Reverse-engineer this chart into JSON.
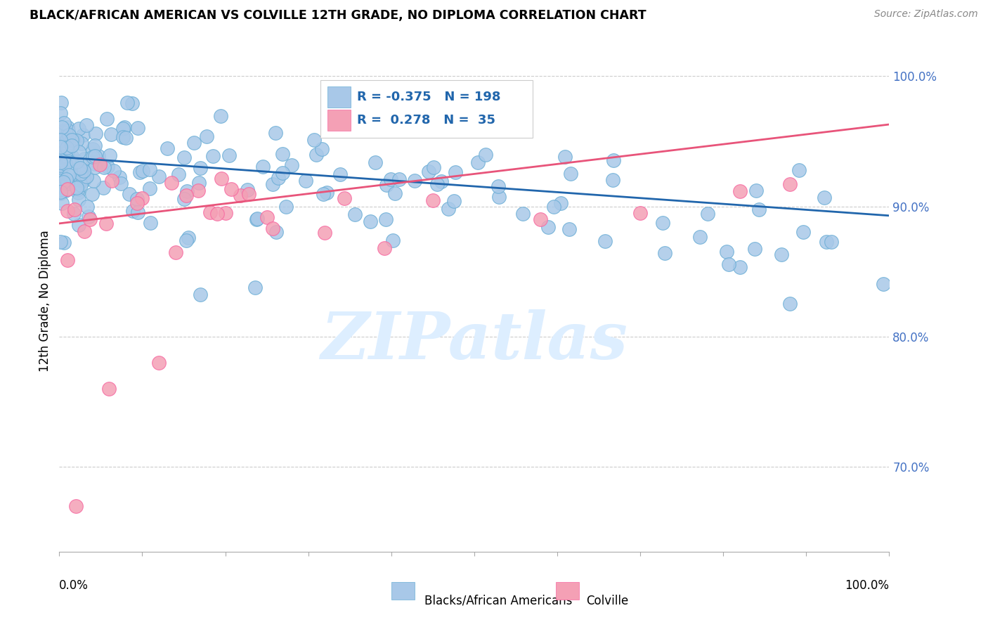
{
  "title": "BLACK/AFRICAN AMERICAN VS COLVILLE 12TH GRADE, NO DIPLOMA CORRELATION CHART",
  "source": "Source: ZipAtlas.com",
  "ylabel": "12th Grade, No Diploma",
  "yticks_labels": [
    "100.0%",
    "90.0%",
    "80.0%",
    "70.0%"
  ],
  "ytick_values": [
    1.0,
    0.9,
    0.8,
    0.7
  ],
  "blue_R": "-0.375",
  "blue_N": "198",
  "pink_R": "0.278",
  "pink_N": "35",
  "blue_color": "#a8c8e8",
  "pink_color": "#f4a0b5",
  "blue_edge_color": "#6baed6",
  "pink_edge_color": "#f768a1",
  "blue_line_color": "#2166ac",
  "pink_line_color": "#e8547a",
  "watermark_color": "#ddeeff",
  "legend_label_blue": "Blacks/African Americans",
  "legend_label_pink": "Colville",
  "blue_line_y_start": 0.938,
  "blue_line_y_end": 0.893,
  "pink_line_y_start": 0.887,
  "pink_line_y_end": 0.963,
  "xmin": 0.0,
  "xmax": 1.0,
  "ymin": 0.635,
  "ymax": 1.02,
  "title_fontsize": 12.5,
  "source_fontsize": 10,
  "ytick_fontsize": 12,
  "legend_fontsize": 12
}
